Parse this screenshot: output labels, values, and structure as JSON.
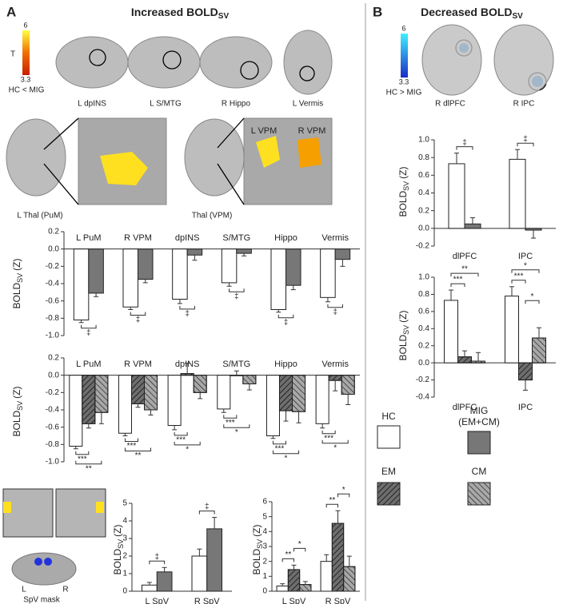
{
  "panel_a": {
    "letter": "A",
    "title": [
      "Increased BOLD",
      "SV"
    ],
    "colorbar": {
      "label": "T",
      "max": 6,
      "min": 3.3,
      "contrast": "HC < MIG"
    },
    "brain_labels": [
      "L dpINS",
      "L S/MTG",
      "R Hippo",
      "L Vermis"
    ],
    "thal_labels": [
      "L Thal (PuM)",
      "Thal (VPM)"
    ],
    "inset_labels": [
      "L VPM",
      "R VPM"
    ],
    "mask": {
      "left": "L",
      "right": "R",
      "title": "SpV mask"
    }
  },
  "panel_b": {
    "letter": "B",
    "title": [
      "Decreased BOLD",
      "SV"
    ],
    "colorbar": {
      "max": 6,
      "min": 3.3,
      "contrast": "HC > MIG"
    },
    "brain_labels": [
      "R dlPFC",
      "R IPC"
    ],
    "legend_note": "(EM+CM)"
  },
  "chart_data": [
    {
      "type": "bar",
      "ylabel": [
        "BOLD",
        "SV",
        "(Z)"
      ],
      "xlabel_position": "top",
      "categories": [
        "L PuM",
        "R VPM",
        "dpINS",
        "S/MTG",
        "Hippo",
        "Vermis"
      ],
      "series": [
        {
          "name": "HC",
          "color": "#ffffff",
          "values": [
            -0.82,
            -0.67,
            -0.58,
            -0.39,
            -0.7,
            -0.56
          ],
          "errors": [
            0.03,
            0.03,
            0.05,
            0.04,
            0.03,
            0.05
          ]
        },
        {
          "name": "MIG",
          "color": "#777777",
          "values": [
            -0.51,
            -0.35,
            -0.07,
            -0.05,
            -0.42,
            -0.12
          ],
          "errors": [
            0.04,
            0.04,
            0.06,
            0.03,
            0.05,
            0.08
          ]
        }
      ],
      "ylim": [
        -1.0,
        0.2
      ],
      "yticks": [
        {
          "value": -1.0,
          "label": "-1.0"
        },
        -0.8,
        -0.6,
        -0.4,
        -0.2,
        {
          "value": 0,
          "label": "0.0"
        },
        0.2
      ],
      "significance": [
        {
          "category": 0,
          "from": 0,
          "to": 1,
          "label": "‡"
        },
        {
          "category": 1,
          "from": 0,
          "to": 1,
          "label": "‡"
        },
        {
          "category": 2,
          "from": 0,
          "to": 1,
          "label": "‡"
        },
        {
          "category": 3,
          "from": 0,
          "to": 1,
          "label": "‡"
        },
        {
          "category": 4,
          "from": 0,
          "to": 1,
          "label": "‡"
        },
        {
          "category": 5,
          "from": 0,
          "to": 1,
          "label": "‡"
        }
      ]
    },
    {
      "type": "bar",
      "ylabel": [
        "BOLD",
        "SV",
        "(Z)"
      ],
      "xlabel_position": "top",
      "categories": [
        "L PuM",
        "R VPM",
        "dpINS",
        "S/MTG",
        "Hippo",
        "Vermis"
      ],
      "series": [
        {
          "name": "HC",
          "color": "#ffffff",
          "values": [
            -0.82,
            -0.67,
            -0.58,
            -0.39,
            -0.7,
            -0.56
          ],
          "errors": [
            0.03,
            0.03,
            0.05,
            0.04,
            0.03,
            0.05
          ]
        },
        {
          "name": "EM",
          "color": "#6e6e6e",
          "hatch": "forward",
          "values": [
            -0.56,
            -0.33,
            0.02,
            0.0,
            -0.41,
            -0.06
          ],
          "errors": [
            0.05,
            0.04,
            0.12,
            0.05,
            0.12,
            0.12
          ]
        },
        {
          "name": "CM",
          "color": "#a8a8a8",
          "hatch": "backward",
          "values": [
            -0.43,
            -0.4,
            -0.2,
            -0.1,
            -0.42,
            -0.22
          ],
          "errors": [
            0.13,
            0.06,
            0.07,
            0.07,
            0.13,
            0.12
          ]
        }
      ],
      "ylim": [
        -1.0,
        0.2
      ],
      "yticks": [
        {
          "value": -1.0,
          "label": "-1.0"
        },
        -0.8,
        -0.6,
        -0.4,
        -0.2,
        {
          "value": 0,
          "label": "0.0"
        },
        0.2
      ],
      "significance": [
        {
          "category": 0,
          "from": 0,
          "to": 1,
          "label": "***"
        },
        {
          "category": 0,
          "from": 0,
          "to": 2,
          "label": "**"
        },
        {
          "category": 1,
          "from": 0,
          "to": 1,
          "label": "***"
        },
        {
          "category": 1,
          "from": 0,
          "to": 2,
          "label": "**"
        },
        {
          "category": 2,
          "from": 0,
          "to": 1,
          "label": "***"
        },
        {
          "category": 2,
          "from": 0,
          "to": 2,
          "label": "*"
        },
        {
          "category": 3,
          "from": 0,
          "to": 1,
          "label": "***"
        },
        {
          "category": 3,
          "from": 0,
          "to": 2,
          "label": "*"
        },
        {
          "category": 4,
          "from": 0,
          "to": 1,
          "label": "***"
        },
        {
          "category": 4,
          "from": 0,
          "to": 2,
          "label": "*"
        },
        {
          "category": 5,
          "from": 0,
          "to": 1,
          "label": "***"
        },
        {
          "category": 5,
          "from": 0,
          "to": 2,
          "label": "*"
        }
      ]
    },
    {
      "type": "bar",
      "ylabel": [
        "BOLD",
        "SV",
        "(Z)"
      ],
      "xlabel_position": "bottom",
      "categories": [
        "L SpV",
        "R SpV"
      ],
      "series": [
        {
          "name": "HC",
          "color": "#ffffff",
          "values": [
            0.35,
            2.0
          ],
          "errors": [
            0.15,
            0.4
          ]
        },
        {
          "name": "MIG",
          "color": "#777777",
          "values": [
            1.1,
            3.55
          ],
          "errors": [
            0.25,
            0.65
          ]
        }
      ],
      "ylim": [
        0,
        5
      ],
      "yticks": [
        0,
        1,
        2,
        3,
        4,
        5
      ],
      "significance": [
        {
          "category": 0,
          "from": 0,
          "to": 1,
          "label": "‡"
        },
        {
          "category": 1,
          "from": 0,
          "to": 1,
          "label": "‡"
        }
      ]
    },
    {
      "type": "bar",
      "ylabel": [
        "BOLD",
        "SV",
        "(Z)"
      ],
      "xlabel_position": "bottom",
      "categories": [
        "L SpV",
        "R SpV"
      ],
      "series": [
        {
          "name": "HC",
          "color": "#ffffff",
          "values": [
            0.35,
            2.0
          ],
          "errors": [
            0.15,
            0.45
          ]
        },
        {
          "name": "EM",
          "color": "#6e6e6e",
          "hatch": "forward",
          "values": [
            1.45,
            4.55
          ],
          "errors": [
            0.3,
            0.85
          ]
        },
        {
          "name": "CM",
          "color": "#a8a8a8",
          "hatch": "backward",
          "values": [
            0.45,
            1.65
          ],
          "errors": [
            0.2,
            0.7
          ]
        }
      ],
      "ylim": [
        0,
        6
      ],
      "yticks": [
        0,
        1,
        2,
        3,
        4,
        5,
        6
      ],
      "significance": [
        {
          "category": 0,
          "from": 0,
          "to": 1,
          "label": "**"
        },
        {
          "category": 0,
          "from": 1,
          "to": 2,
          "label": "*"
        },
        {
          "category": 1,
          "from": 0,
          "to": 1,
          "label": "**"
        },
        {
          "category": 1,
          "from": 1,
          "to": 2,
          "label": "*"
        }
      ]
    },
    {
      "type": "bar",
      "ylabel": [
        "BOLD",
        "SV",
        "(Z)"
      ],
      "xlabel_position": "bottom",
      "categories": [
        "dlPFC",
        "IPC"
      ],
      "series": [
        {
          "name": "HC",
          "color": "#ffffff",
          "values": [
            0.73,
            0.78
          ],
          "errors": [
            0.12,
            0.11
          ]
        },
        {
          "name": "MIG",
          "color": "#777777",
          "values": [
            0.05,
            -0.02
          ],
          "errors": [
            0.07,
            0.09
          ]
        }
      ],
      "ylim": [
        -0.2,
        1.0
      ],
      "yticks": [
        -0.2,
        {
          "value": 0,
          "label": "0.0"
        },
        0.2,
        0.4,
        0.6,
        0.8,
        {
          "value": 1.0,
          "label": "1.0"
        }
      ],
      "significance": [
        {
          "category": 0,
          "from": 0,
          "to": 1,
          "label": "‡"
        },
        {
          "category": 1,
          "from": 0,
          "to": 1,
          "label": "‡"
        }
      ]
    },
    {
      "type": "bar",
      "ylabel": [
        "BOLD",
        "SV",
        "(Z)"
      ],
      "xlabel_position": "bottom",
      "categories": [
        "dlPFC",
        "IPC"
      ],
      "series": [
        {
          "name": "HC",
          "color": "#ffffff",
          "values": [
            0.73,
            0.78
          ],
          "errors": [
            0.12,
            0.11
          ]
        },
        {
          "name": "EM",
          "color": "#6e6e6e",
          "hatch": "forward",
          "values": [
            0.07,
            -0.2
          ],
          "errors": [
            0.07,
            0.12
          ]
        },
        {
          "name": "CM",
          "color": "#a8a8a8",
          "hatch": "backward",
          "values": [
            0.02,
            0.29
          ],
          "errors": [
            0.1,
            0.12
          ]
        }
      ],
      "ylim": [
        -0.4,
        1.0
      ],
      "yticks": [
        -0.4,
        -0.2,
        {
          "value": 0,
          "label": "0.0"
        },
        0.2,
        0.4,
        0.6,
        0.8,
        {
          "value": 1.0,
          "label": "1.0"
        }
      ],
      "significance": [
        {
          "category": 0,
          "from": 0,
          "to": 1,
          "label": "***"
        },
        {
          "category": 0,
          "from": 0,
          "to": 2,
          "label": "**"
        },
        {
          "category": 1,
          "from": 0,
          "to": 1,
          "label": "***"
        },
        {
          "category": 1,
          "from": 0,
          "to": 2,
          "label": "*"
        },
        {
          "category": 1,
          "from": 1,
          "to": 2,
          "label": "*"
        }
      ]
    }
  ]
}
